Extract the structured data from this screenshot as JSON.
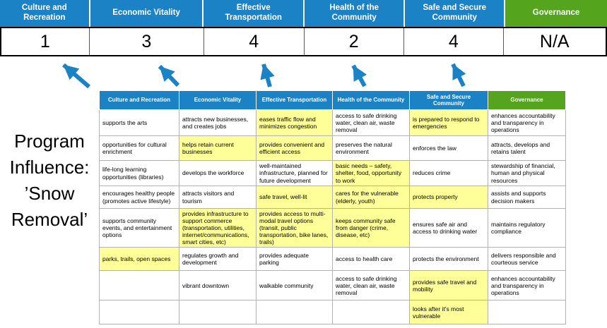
{
  "colors": {
    "blue": "#1b82c5",
    "green": "#55a41e",
    "highlight": "#ffff99"
  },
  "title": "Program Influence: ’Snow Removal’",
  "scoreboard": {
    "categories": [
      "Culture and Recreation",
      "Economic Vitality",
      "Effective Transportation",
      "Health of the Community",
      "Safe and Secure Community",
      "Governance"
    ],
    "scores": [
      "1",
      "3",
      "4",
      "2",
      "4",
      "N/A"
    ]
  },
  "matrix": {
    "headers": [
      {
        "label": "Culture and Recreation",
        "color": "blue"
      },
      {
        "label": "Economic Vitality",
        "color": "blue"
      },
      {
        "label": "Effective Transportation",
        "color": "blue"
      },
      {
        "label": "Health of the Community",
        "color": "blue"
      },
      {
        "label": "Safe and Secure Community",
        "color": "blue"
      },
      {
        "label": "Governance",
        "color": "green"
      }
    ],
    "rows": [
      [
        {
          "text": "supports the arts",
          "highlight": false
        },
        {
          "text": "attracts new businesses, and creates jobs",
          "highlight": false
        },
        {
          "text": "eases traffic flow and minimizes congestion",
          "highlight": true
        },
        {
          "text": "access to safe drinking water, clean air, waste removal",
          "highlight": false
        },
        {
          "text": "is prepared to respond to emergencies",
          "highlight": true
        },
        {
          "text": "enhances accountability and transparency in operations",
          "highlight": false
        }
      ],
      [
        {
          "text": "opportunities for cultural enrichment",
          "highlight": false
        },
        {
          "text": "helps retain current businesses",
          "highlight": true
        },
        {
          "text": "provides convenient and efficient access",
          "highlight": true
        },
        {
          "text": "preserves the natural environment",
          "highlight": false
        },
        {
          "text": "enforces the law",
          "highlight": false
        },
        {
          "text": "attracts, develops and retains talent",
          "highlight": false
        }
      ],
      [
        {
          "text": "life-long learning opportunities (libraries)",
          "highlight": false
        },
        {
          "text": "develops the workforce",
          "highlight": false
        },
        {
          "text": "well-maintained infrastructure, planned for future development",
          "highlight": false
        },
        {
          "text": "basic needs – safety, shelter, food, opportunity to work",
          "highlight": true
        },
        {
          "text": "reduces crime",
          "highlight": false
        },
        {
          "text": "stewardship of financial, human and physical resources",
          "highlight": false
        }
      ],
      [
        {
          "text": "encourages healthy people (promotes active lifestyle)",
          "highlight": false
        },
        {
          "text": "attracts visitors and tourism",
          "highlight": false
        },
        {
          "text": "safe travel, well-lit",
          "highlight": true
        },
        {
          "text": "cares for the vulnerable (elderly, youth)",
          "highlight": true
        },
        {
          "text": "protects property",
          "highlight": true
        },
        {
          "text": "assists and supports decision makers",
          "highlight": false
        }
      ],
      [
        {
          "text": "supports community events, and entertainment options",
          "highlight": false
        },
        {
          "text": "provides infrastructure to support commerce (transportation, utilities, internet/communications, smart cities, etc)",
          "highlight": true
        },
        {
          "text": "provides access to multi-modal travel options (transit, public transportation, bike lanes, trails)",
          "highlight": true
        },
        {
          "text": "keeps community safe from danger (crime, disease, etc)",
          "highlight": true
        },
        {
          "text": "ensures safe air and access to drinking water",
          "highlight": false
        },
        {
          "text": "maintains regulatory compliance",
          "highlight": false
        }
      ],
      [
        {
          "text": "parks, trails, open spaces",
          "highlight": true
        },
        {
          "text": "regulates growth and development",
          "highlight": false
        },
        {
          "text": "provides adequate parking",
          "highlight": false
        },
        {
          "text": "access to health care",
          "highlight": false
        },
        {
          "text": "protects the environment",
          "highlight": false
        },
        {
          "text": "delivers responsible and courteous service",
          "highlight": false
        }
      ],
      [
        {
          "text": "",
          "highlight": false
        },
        {
          "text": "vibrant downtown",
          "highlight": false
        },
        {
          "text": "walkable community",
          "highlight": false
        },
        {
          "text": "access to safe drinking water, clean air, waste removal",
          "highlight": false
        },
        {
          "text": "provides safe travel and mobility",
          "highlight": true
        },
        {
          "text": "enhances accountability and transparency in operations",
          "highlight": false
        }
      ],
      [
        {
          "text": "",
          "highlight": false
        },
        {
          "text": "",
          "highlight": false
        },
        {
          "text": "",
          "highlight": false
        },
        {
          "text": "",
          "highlight": false
        },
        {
          "text": "looks after it's most vulnerable",
          "highlight": true
        },
        {
          "text": "",
          "highlight": false
        }
      ]
    ]
  }
}
